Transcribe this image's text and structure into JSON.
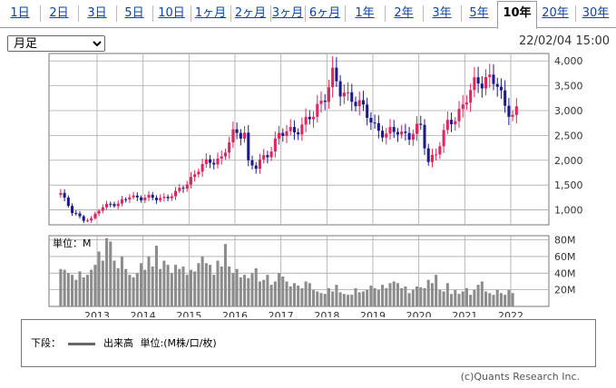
{
  "tabs": [
    {
      "label": "1日",
      "active": false
    },
    {
      "label": "2日",
      "active": false
    },
    {
      "label": "3日",
      "active": false
    },
    {
      "label": "5日",
      "active": false
    },
    {
      "label": "10日",
      "active": false
    },
    {
      "label": "1ヶ月",
      "active": false
    },
    {
      "label": "2ヶ月",
      "active": false
    },
    {
      "label": "3ヶ月",
      "active": false
    },
    {
      "label": "6ヶ月",
      "active": false
    },
    {
      "label": "1年",
      "active": false
    },
    {
      "label": "2年",
      "active": false
    },
    {
      "label": "3年",
      "active": false
    },
    {
      "label": "5年",
      "active": false
    },
    {
      "label": "10年",
      "active": true
    },
    {
      "label": "20年",
      "active": false
    },
    {
      "label": "30年",
      "active": false
    }
  ],
  "period_select": {
    "value": "月足"
  },
  "timestamp": "22/02/04 15:00",
  "copyright": "(c)Quants Research Inc.",
  "legend": {
    "prefix": "下段：",
    "series": "出来高",
    "unit": "単位:(M株/口/枚)"
  },
  "colors": {
    "up": "#e0245e",
    "down": "#1a1a8c",
    "volume": "#8c8c8c",
    "grid": "#aaaaaa"
  },
  "chart_data": [
    {
      "type": "candlestick",
      "title": "",
      "x_labels": [
        "2013",
        "2014",
        "2015",
        "2016",
        "2017",
        "2018",
        "2019",
        "2020",
        "2021",
        "2022"
      ],
      "y_ticks": [
        "1,000",
        "1,500",
        "2,000",
        "2,500",
        "3,000",
        "3,500",
        "4,000"
      ],
      "ylim": [
        700,
        4150
      ],
      "grid": true,
      "anchors": [
        [
          "2012-03",
          1350
        ],
        [
          "2012-04",
          1200
        ],
        [
          "2012-06",
          950
        ],
        [
          "2012-09",
          820
        ],
        [
          "2012-11",
          800
        ],
        [
          "2013-01",
          1000
        ],
        [
          "2013-04",
          1150
        ],
        [
          "2013-06",
          1100
        ],
        [
          "2013-09",
          1280
        ],
        [
          "2013-12",
          1250
        ],
        [
          "2014-03",
          1230
        ],
        [
          "2014-06",
          1250
        ],
        [
          "2014-09",
          1320
        ],
        [
          "2014-12",
          1550
        ],
        [
          "2015-03",
          1820
        ],
        [
          "2015-06",
          1980
        ],
        [
          "2015-09",
          2050
        ],
        [
          "2015-12",
          2500
        ],
        [
          "2016-03",
          2600
        ],
        [
          "2016-04",
          1950
        ],
        [
          "2016-06",
          1850
        ],
        [
          "2016-09",
          2150
        ],
        [
          "2016-12",
          2500
        ],
        [
          "2017-03",
          2580
        ],
        [
          "2017-06",
          2700
        ],
        [
          "2017-09",
          2900
        ],
        [
          "2017-12",
          3350
        ],
        [
          "2018-02",
          3700
        ],
        [
          "2018-04",
          3350
        ],
        [
          "2018-07",
          3300
        ],
        [
          "2018-10",
          3000
        ],
        [
          "2019-01",
          2700
        ],
        [
          "2019-04",
          2500
        ],
        [
          "2019-07",
          2600
        ],
        [
          "2019-10",
          2500
        ],
        [
          "2020-01",
          2650
        ],
        [
          "2020-03",
          2000
        ],
        [
          "2020-05",
          2150
        ],
        [
          "2020-08",
          2700
        ],
        [
          "2020-12",
          3100
        ],
        [
          "2021-03",
          3500
        ],
        [
          "2021-06",
          3700
        ],
        [
          "2021-09",
          3500
        ],
        [
          "2021-11",
          3050
        ],
        [
          "2022-01",
          3000
        ]
      ],
      "last_close": 3000
    },
    {
      "type": "bar",
      "title": "単位：M",
      "y_ticks": [
        "20M",
        "40M",
        "60M",
        "80M"
      ],
      "ylim": [
        0,
        85
      ],
      "categories_range": [
        "2012-03",
        "2022-02"
      ],
      "values": [
        45,
        44,
        40,
        38,
        32,
        42,
        35,
        38,
        44,
        50,
        66,
        55,
        82,
        78,
        55,
        46,
        60,
        45,
        38,
        35,
        40,
        52,
        44,
        60,
        48,
        73,
        45,
        55,
        50,
        40,
        50,
        45,
        48,
        38,
        44,
        42,
        52,
        60,
        52,
        50,
        38,
        55,
        48,
        75,
        48,
        40,
        45,
        35,
        38,
        34,
        40,
        46,
        30,
        32,
        38,
        26,
        30,
        40,
        36,
        30,
        24,
        28,
        25,
        22,
        30,
        28,
        20,
        18,
        16,
        15,
        22,
        18,
        26,
        17,
        15,
        14,
        14,
        22,
        17,
        18,
        20,
        25,
        22,
        20,
        26,
        22,
        28,
        30,
        28,
        22,
        24,
        16,
        20,
        24,
        23,
        22,
        32,
        28,
        38,
        20,
        18,
        28,
        15,
        20,
        15,
        18,
        22,
        14,
        20,
        26,
        30,
        18,
        16,
        14,
        20,
        16,
        14,
        20,
        16
      ]
    }
  ]
}
